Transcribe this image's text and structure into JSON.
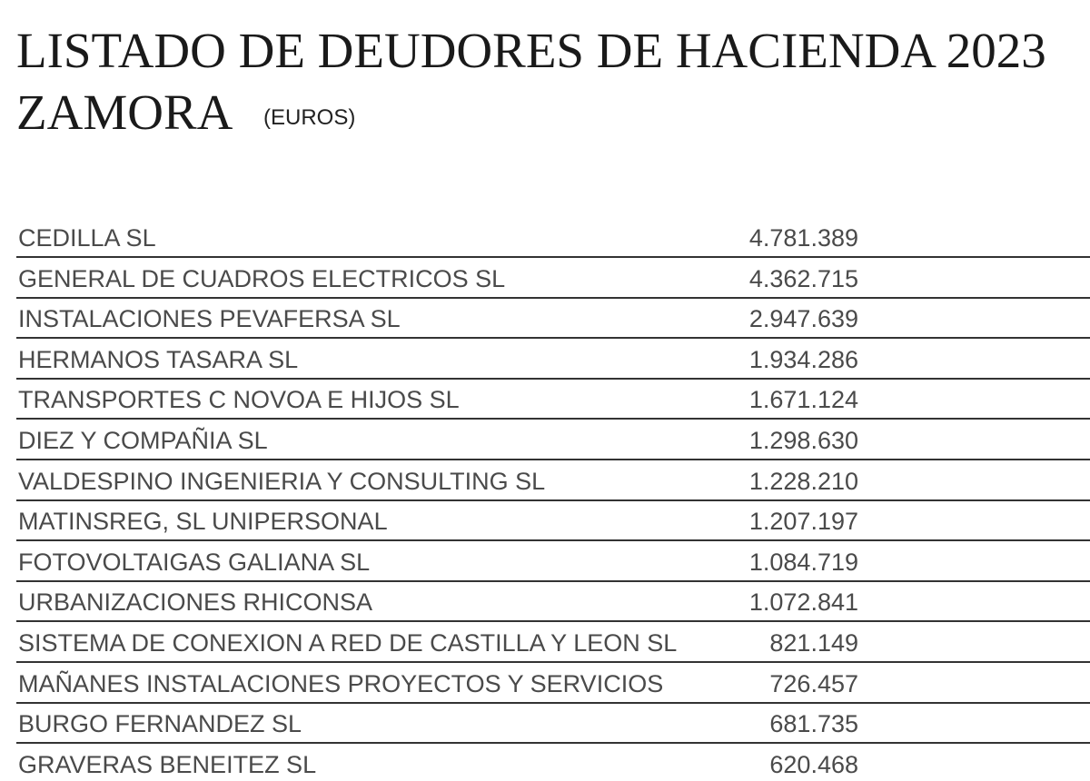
{
  "header": {
    "title_line1": "LISTADO DE DEUDORES DE HACIENDA 2023",
    "title_line2": "ZAMORA",
    "unit": "(EUROS)"
  },
  "table": {
    "rows": [
      [
        "CEDILLA SL",
        "4.781.389"
      ],
      [
        "GENERAL DE CUADROS ELECTRICOS SL",
        "4.362.715"
      ],
      [
        "INSTALACIONES PEVAFERSA SL",
        "2.947.639"
      ],
      [
        "HERMANOS TASARA SL",
        "1.934.286"
      ],
      [
        "TRANSPORTES C NOVOA E HIJOS SL",
        "1.671.124"
      ],
      [
        "DIEZ Y COMPAÑIA SL",
        "1.298.630"
      ],
      [
        "VALDESPINO INGENIERIA Y CONSULTING SL",
        "1.228.210"
      ],
      [
        "MATINSREG, SL UNIPERSONAL",
        "1.207.197"
      ],
      [
        "FOTOVOLTAIGAS GALIANA SL",
        "1.084.719"
      ],
      [
        "URBANIZACIONES RHICONSA",
        "1.072.841"
      ],
      [
        "SISTEMA DE CONEXION A RED DE CASTILLA Y LEON SL",
        "821.149"
      ],
      [
        "MAÑANES INSTALACIONES PROYECTOS Y SERVICIOS",
        "726.457"
      ],
      [
        "BURGO FERNANDEZ SL",
        "681.735"
      ],
      [
        "GRAVERAS BENEITEZ SL",
        "620.468"
      ]
    ]
  }
}
